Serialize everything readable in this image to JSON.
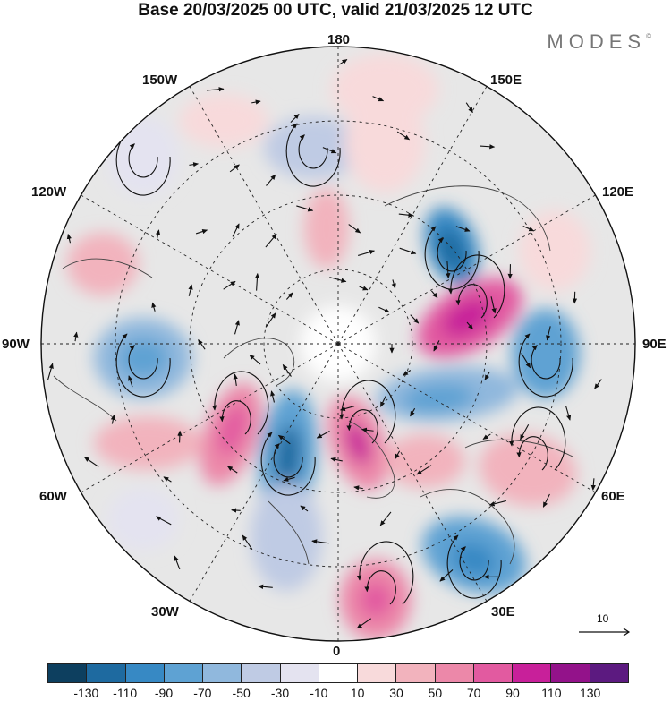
{
  "title": "Base 20/03/2025 00 UTC, valid 21/03/2025 12 UTC",
  "logo": {
    "text": "MODES",
    "mark": "©"
  },
  "longitude_labels": {
    "lon_180": "180",
    "lon_150e": "150E",
    "lon_120e": "120E",
    "lon_90e": "90E",
    "lon_60e": "60E",
    "lon_30e": "30E",
    "lon_0": "0",
    "lon_30w": "30W",
    "lon_60w": "60W",
    "lon_90w": "90W",
    "lon_120w": "120W",
    "lon_150w": "150W"
  },
  "reference_vector": {
    "label": "10"
  },
  "colorbar": {
    "colors": [
      "#0d3f5f",
      "#1e6aa0",
      "#3789c4",
      "#5ea2d3",
      "#90b8dd",
      "#bfcbe4",
      "#e4e3f0",
      "#ffffff",
      "#f8dadb",
      "#f2b3bd",
      "#ec88a9",
      "#e25aa0",
      "#c8209a",
      "#93128a",
      "#5c1a80"
    ],
    "ticks": [
      "-130",
      "-110",
      "-90",
      "-70",
      "-50",
      "-30",
      "-10",
      "10",
      "30",
      "50",
      "70",
      "90",
      "110",
      "130"
    ]
  }
}
